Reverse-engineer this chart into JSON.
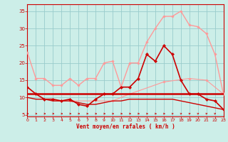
{
  "bg_color": "#cceee8",
  "grid_color": "#99cccc",
  "x_label": "Vent moyen/en rafales ( km/h )",
  "ylim": [
    4.5,
    37
  ],
  "xlim": [
    0,
    23
  ],
  "y_ticks": [
    5,
    10,
    15,
    20,
    25,
    30,
    35
  ],
  "x_ticks": [
    0,
    1,
    2,
    3,
    4,
    5,
    6,
    7,
    8,
    9,
    10,
    11,
    12,
    13,
    14,
    15,
    16,
    17,
    18,
    19,
    20,
    21,
    22,
    23
  ],
  "line_pink_upper": [
    23,
    15.5,
    15.5,
    13.5,
    13.5,
    15.5,
    13.5,
    15.5,
    15.5,
    20,
    20.5,
    13,
    20,
    20,
    26,
    30,
    33.5,
    33.5,
    35,
    31,
    30.5,
    28.5,
    22.5,
    11
  ],
  "line_pink_lower": [
    null,
    null,
    null,
    null,
    null,
    9,
    null,
    null,
    null,
    null,
    9,
    null,
    11,
    null,
    null,
    null,
    14.5,
    null,
    null,
    15.5,
    null,
    15,
    null,
    11
  ],
  "line_pink_mid": [
    null,
    null,
    null,
    null,
    null,
    null,
    null,
    null,
    null,
    null,
    null,
    null,
    null,
    null,
    null,
    null,
    null,
    null,
    null,
    null,
    null,
    null,
    null,
    null
  ],
  "line_red_main": [
    13,
    11,
    9.5,
    9.5,
    9,
    9.5,
    8,
    7.5,
    9.5,
    11,
    11,
    13,
    13,
    15.5,
    22.5,
    20.5,
    25,
    22.5,
    15,
    11,
    11,
    9.5,
    9,
    6.5
  ],
  "line_red_flat": [
    11,
    11,
    11,
    11,
    11,
    11,
    11,
    11,
    11,
    11,
    11,
    11,
    11,
    11,
    11,
    11,
    11,
    11,
    11,
    11,
    11,
    11,
    11,
    11
  ],
  "line_red_decay": [
    10,
    9.5,
    9.5,
    9,
    9,
    9,
    8.5,
    8,
    8,
    8.5,
    9,
    9,
    9.5,
    9.5,
    9.5,
    9.5,
    9.5,
    9.5,
    9,
    8.5,
    8,
    7.5,
    7,
    6.5
  ],
  "line_pink2_upper": [
    null,
    null,
    null,
    null,
    null,
    null,
    null,
    null,
    null,
    null,
    null,
    null,
    null,
    null,
    null,
    null,
    null,
    null,
    null,
    null,
    null,
    null,
    null,
    null
  ],
  "arrows_x": [
    0,
    1,
    2,
    3,
    4,
    5,
    6,
    7,
    8,
    9,
    10,
    11,
    12,
    13,
    14,
    15,
    16,
    17,
    18,
    19,
    20,
    21,
    22,
    23
  ],
  "arrows_angle": [
    0,
    0,
    0,
    0,
    0,
    0,
    0,
    0,
    0,
    0,
    0,
    0,
    0,
    0,
    0,
    0,
    0,
    15,
    20,
    25,
    30,
    35,
    40,
    45
  ]
}
